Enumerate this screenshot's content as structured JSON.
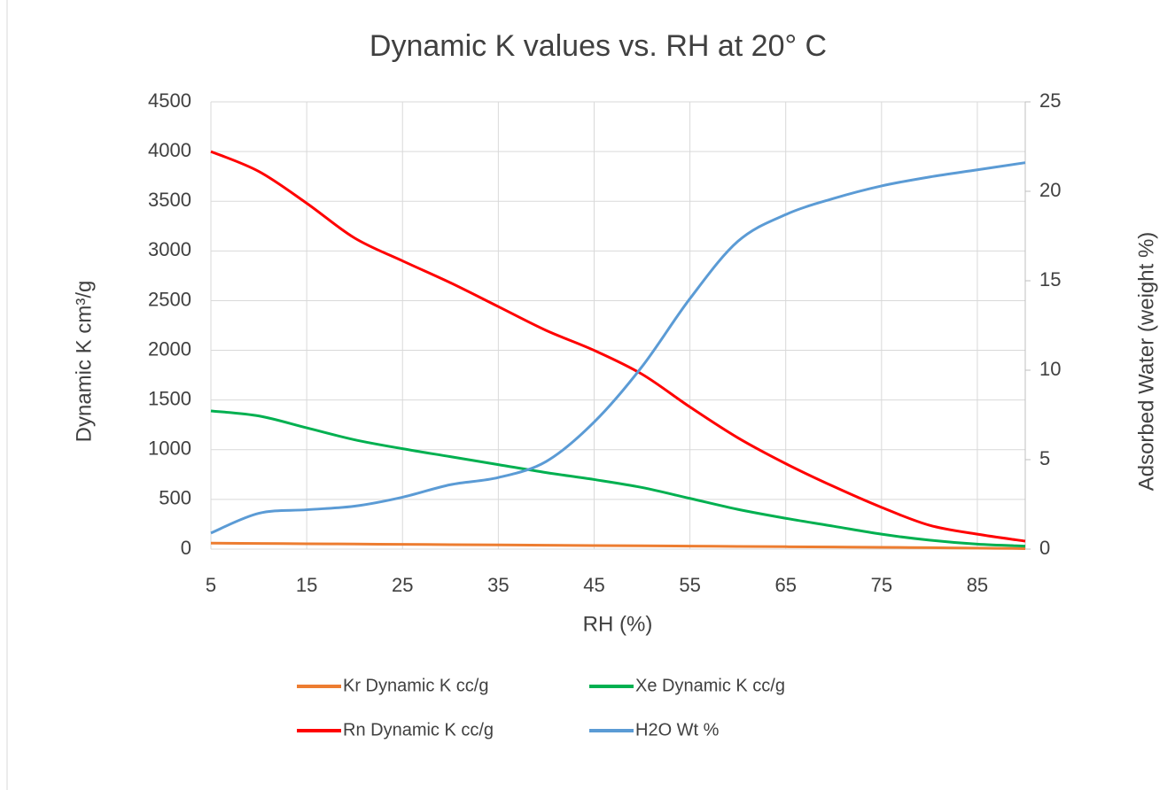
{
  "chart_data": {
    "type": "line",
    "title": "Dynamic K values vs. RH at 20° C",
    "x_label": "RH (%)",
    "y_label": "Dynamic K cm³/g",
    "y2_label": "Adsorbed Water (weight %)",
    "x": [
      5,
      10,
      15,
      20,
      25,
      30,
      35,
      40,
      45,
      50,
      55,
      60,
      65,
      70,
      75,
      80,
      85,
      90
    ],
    "xlim": [
      5,
      90
    ],
    "xticks": [
      5,
      15,
      25,
      35,
      45,
      55,
      65,
      75,
      85
    ],
    "ylim": [
      0,
      4500
    ],
    "yticks": [
      0,
      500,
      1000,
      1500,
      2000,
      2500,
      3000,
      3500,
      4000,
      4500
    ],
    "y2lim": [
      0,
      25
    ],
    "y2ticks": [
      0,
      5,
      10,
      15,
      20,
      25
    ],
    "grid": true,
    "legend": "bottom",
    "series": [
      {
        "name": "Kr Dynamic K cc/g",
        "color": "#ed7d31",
        "values": [
          60,
          57,
          54,
          51,
          48,
          45,
          42,
          39,
          36,
          33,
          30,
          27,
          24,
          21,
          18,
          14,
          10,
          5
        ]
      },
      {
        "name": "Xe Dynamic K cc/g",
        "color": "#00b050",
        "values": [
          1390,
          1340,
          1220,
          1100,
          1010,
          930,
          850,
          770,
          700,
          620,
          510,
          400,
          310,
          230,
          150,
          90,
          50,
          30
        ]
      },
      {
        "name": "Rn Dynamic K cc/g",
        "color": "#ff0000",
        "values": [
          4000,
          3800,
          3480,
          3130,
          2900,
          2680,
          2440,
          2200,
          2000,
          1760,
          1430,
          1120,
          860,
          630,
          420,
          240,
          150,
          80
        ]
      },
      {
        "name": "H2O Wt %",
        "color": "#5b9bd5",
        "axis": "y2",
        "values": [
          0.9,
          2.0,
          2.2,
          2.4,
          2.9,
          3.6,
          4.0,
          4.9,
          7.1,
          10.2,
          14.0,
          17.2,
          18.7,
          19.6,
          20.3,
          20.8,
          21.2,
          21.6
        ]
      }
    ]
  }
}
